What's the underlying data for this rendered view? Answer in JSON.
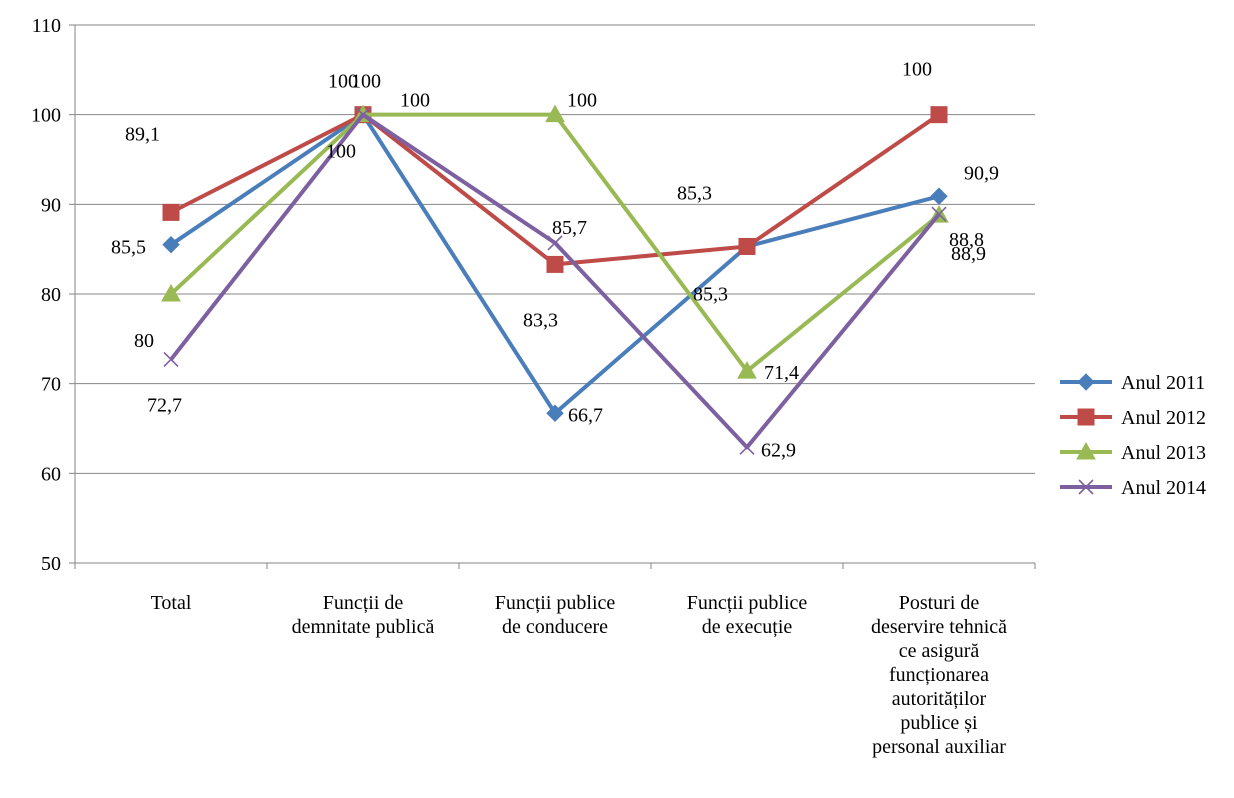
{
  "chart_data": {
    "type": "line",
    "title": "",
    "xlabel": "",
    "ylabel": "",
    "ylim": [
      50,
      110
    ],
    "yticks": [
      "50",
      "60",
      "70",
      "80",
      "90",
      "100",
      "110"
    ],
    "grid": true,
    "legend_position": "right",
    "categories": [
      [
        "Total"
      ],
      [
        "Funcții de",
        "demnitate publică"
      ],
      [
        "Funcții publice",
        "de conducere"
      ],
      [
        "Funcții publice",
        "de execuție"
      ],
      [
        "Posturi de",
        "deservire tehnică",
        "ce asigură",
        "funcționarea",
        "autorităților",
        "publice și",
        "personal auxiliar"
      ]
    ],
    "series": [
      {
        "name": "Anul 2011",
        "color": "#4a7ebb",
        "marker": "diamond",
        "values": [
          85.5,
          100,
          66.7,
          85.3,
          90.9
        ],
        "labels": [
          "85,5",
          "100",
          "66,7",
          "85,3",
          "90,9"
        ]
      },
      {
        "name": "Anul 2012",
        "color": "#be4b48",
        "marker": "square",
        "values": [
          89.1,
          100,
          83.3,
          85.3,
          100
        ],
        "labels": [
          "89,1",
          "100",
          "83,3",
          "85,3",
          "100"
        ]
      },
      {
        "name": "Anul 2013",
        "color": "#98b954",
        "marker": "triangle",
        "values": [
          80,
          100,
          100,
          71.4,
          88.8
        ],
        "labels": [
          "80",
          "100",
          "100",
          "71,4",
          "88,8"
        ]
      },
      {
        "name": "Anul 2014",
        "color": "#7d60a0",
        "marker": "x",
        "values": [
          72.7,
          100,
          85.7,
          62.9,
          88.9
        ],
        "labels": [
          "72,7",
          "100",
          "85,7",
          "62,9",
          "88,9"
        ]
      }
    ]
  }
}
